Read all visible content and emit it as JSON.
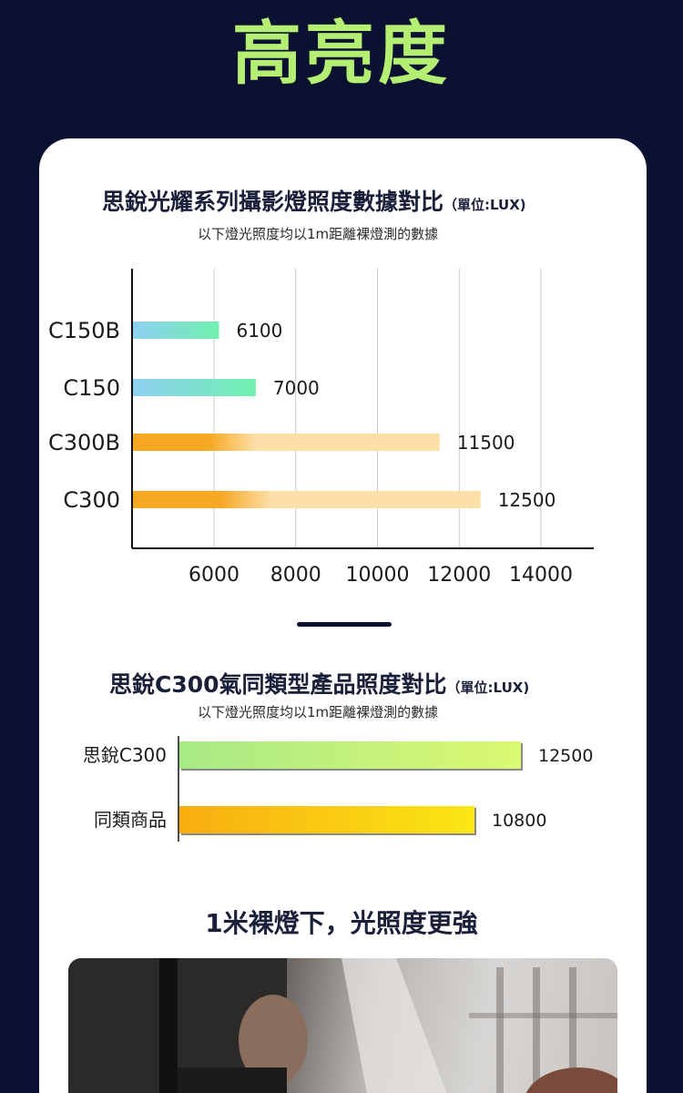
{
  "hero": {
    "title": "高亮度"
  },
  "chart1": {
    "title": "思銳光耀系列攝影燈照度數據對比",
    "unit": "（單位:LUX)",
    "subtitle": "以下燈光照度均以1m距離裸燈測的數據"
  },
  "chart2": {
    "title": "思銳C300氣同類型產品照度對比",
    "unit": "（單位:LUX)",
    "subtitle": "以下燈光照度均以1m距離裸燈測的數據"
  },
  "footer": {
    "text": "1米裸燈下，光照度更強"
  },
  "colors": {
    "background": "#0b1131",
    "accent_green": "#b4ef74",
    "bar_blue_green_start": "#8fd0f3",
    "bar_blue_green_end": "#6ff0ad",
    "bar_orange_start": "#f7a823",
    "bar_orange_end": "#fde0a8"
  },
  "chart_data": [
    {
      "type": "bar",
      "orientation": "horizontal",
      "categories": [
        "C150B",
        "C150",
        "C300B",
        "C300"
      ],
      "values": [
        6100,
        7000,
        11500,
        12500
      ],
      "title": "思銳光耀系列攝影燈照度數據對比",
      "xlim": [
        4000,
        15000
      ],
      "xticks": [
        6000,
        8000,
        10000,
        12000,
        14000
      ],
      "grid": true
    },
    {
      "type": "bar",
      "orientation": "horizontal",
      "categories": [
        "思銳C300",
        "同類商品"
      ],
      "values": [
        12500,
        10800
      ],
      "title": "思銳C300氣同類型產品照度對比",
      "xlim": [
        0,
        14100
      ]
    }
  ]
}
